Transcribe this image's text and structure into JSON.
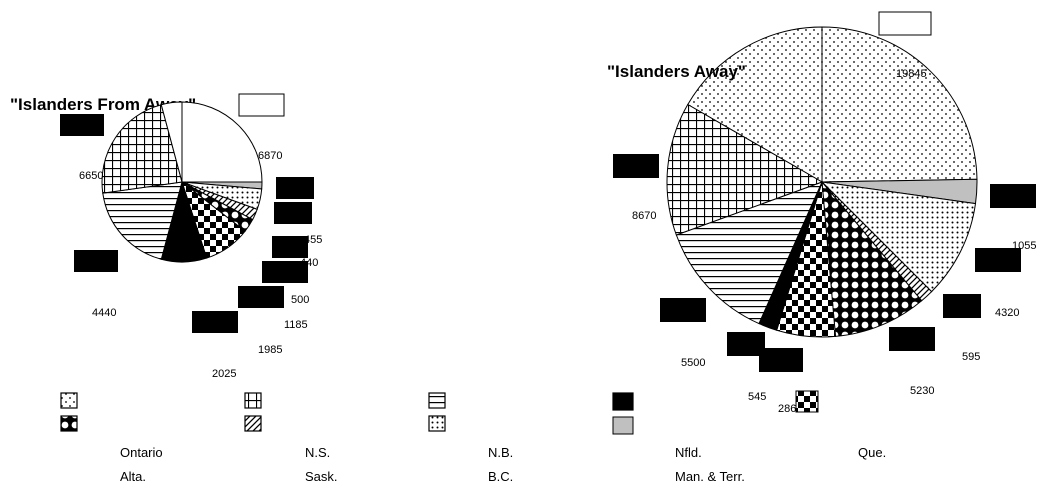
{
  "chart_data": [
    {
      "type": "pie",
      "title": "\"Islanders From Away\"",
      "value_labels": [
        "6870",
        "6650",
        "4440",
        "2025",
        "1985",
        "1185",
        "500",
        "440",
        "455"
      ]
    },
    {
      "type": "pie",
      "title": "\"Islanders Away\"",
      "value_labels": [
        "19845",
        "8670",
        "5500",
        "545",
        "2860",
        "5230",
        "595",
        "4320",
        "1055"
      ]
    }
  ],
  "legend": {
    "row1": [
      "Ontario",
      "N.S.",
      "N.B.",
      "Nfld.",
      "Que."
    ],
    "row2": [
      "Alta.",
      "Sask.",
      "B.C.",
      "Man. & Terr."
    ]
  }
}
